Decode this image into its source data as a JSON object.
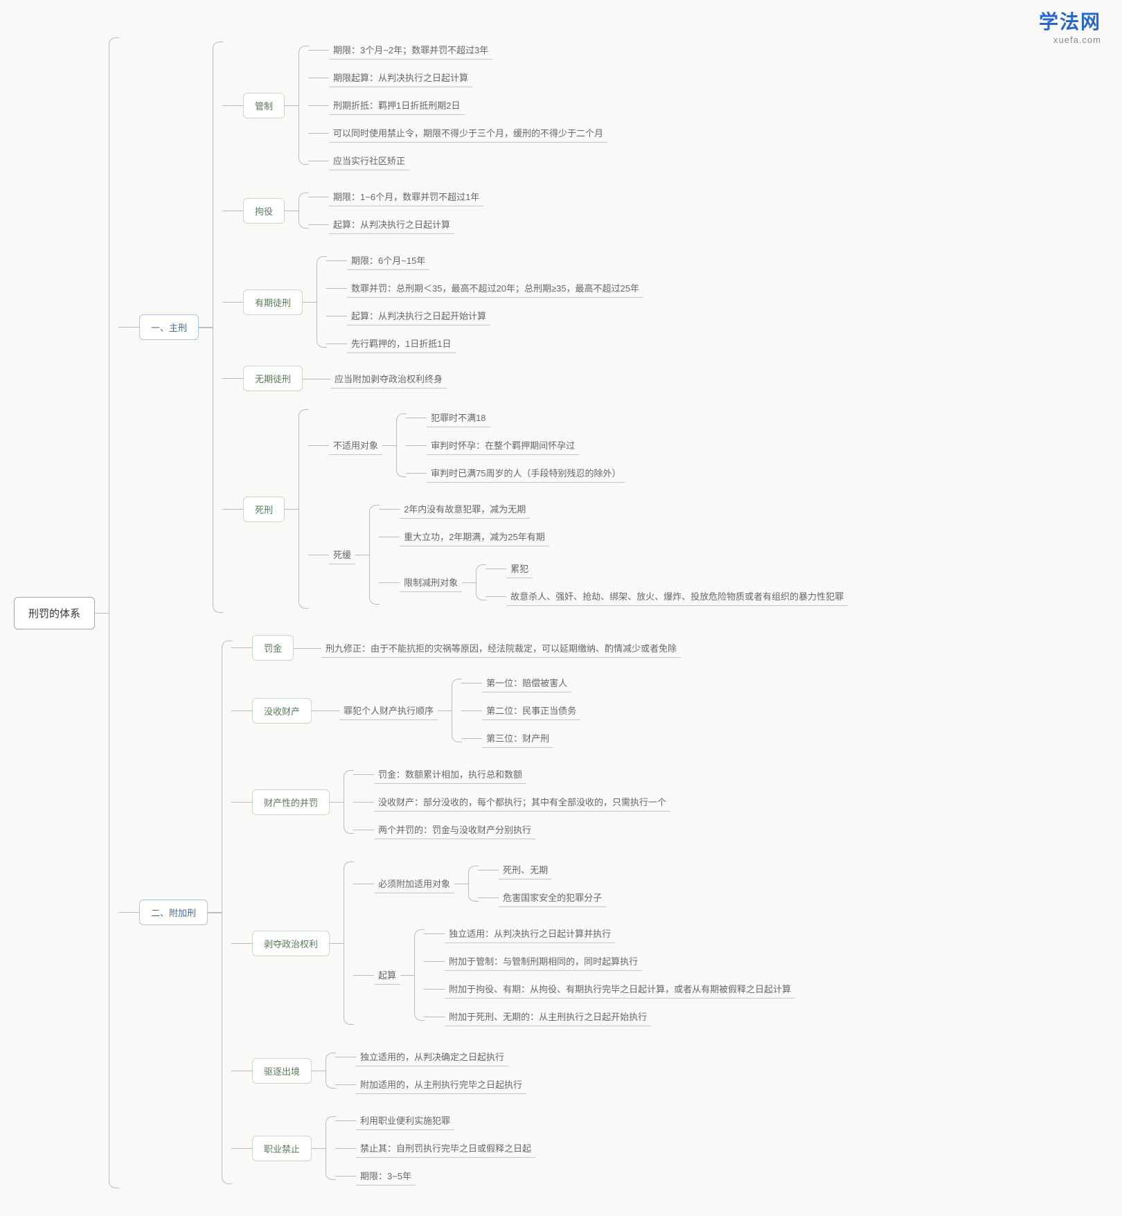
{
  "watermark": {
    "main": "学法网",
    "sub": "xuefa.com"
  },
  "root": "刑罚的体系",
  "b1": {
    "title": "一、主刑",
    "guanzhi": {
      "title": "管制",
      "items": [
        "期限：3个月~2年；数罪并罚不超过3年",
        "期限起算：从判决执行之日起计算",
        "刑期折抵：羁押1日折抵刑期2日",
        "可以同时使用禁止令，期限不得少于三个月，缓刑的不得少于二个月",
        "应当实行社区矫正"
      ]
    },
    "juyi": {
      "title": "拘役",
      "items": [
        "期限：1~6个月，数罪并罚不超过1年",
        "起算：从判决执行之日起计算"
      ]
    },
    "youqi": {
      "title": "有期徒刑",
      "items": [
        "期限：6个月~15年",
        "数罪并罚：总刑期＜35，最高不超过20年；总刑期≥35，最高不超过25年",
        "起算：从判决执行之日起开始计算",
        "先行羁押的，1日折抵1日"
      ]
    },
    "wuqi": {
      "title": "无期徒刑",
      "item": "应当附加剥夺政治权利终身"
    },
    "sixing": {
      "title": "死刑",
      "bushiyong": {
        "title": "不适用对象",
        "items": [
          "犯罪时不满18",
          "审判时怀孕：在整个羁押期间怀孕过",
          "审判时已满75周岁的人（手段特别残忍的除外）"
        ]
      },
      "sihuan": {
        "title": "死缓",
        "items": [
          "2年内没有故意犯罪，减为无期",
          "重大立功，2年期满，减为25年有期"
        ],
        "xianzhi": {
          "title": "限制减刑对象",
          "items": [
            "累犯",
            "故意杀人、强奸、抢劫、绑架、放火、爆炸、投放危险物质或者有组织的暴力性犯罪"
          ]
        }
      }
    }
  },
  "b2": {
    "title": "二、附加刑",
    "fajin": {
      "title": "罚金",
      "item": "刑九修正：由于不能抗拒的灾祸等原因，经法院裁定，可以延期缴纳、酌情减少或者免除"
    },
    "moshoucaichan": {
      "title": "没收财产",
      "sub": "罪犯个人财产执行顺序",
      "items": [
        "第一位：赔偿被害人",
        "第二位：民事正当债务",
        "第三位：财产刑"
      ]
    },
    "caichanxing": {
      "title": "财产性的并罚",
      "items": [
        "罚金：数额累计相加，执行总和数额",
        "没收财产：部分没收的，每个都执行；其中有全部没收的，只需执行一个",
        "两个并罚的：罚金与没收财产分别执行"
      ]
    },
    "boduo": {
      "title": "剥夺政治权利",
      "bixu": {
        "title": "必须附加适用对象",
        "items": [
          "死刑、无期",
          "危害国家安全的犯罪分子"
        ]
      },
      "qisuan": {
        "title": "起算",
        "items": [
          "独立适用：从判决执行之日起计算并执行",
          "附加于管制：与管制刑期相同的，同时起算执行",
          "附加于拘役、有期：从拘役、有期执行完毕之日起计算，或者从有期被假释之日起计算",
          "附加于死刑、无期的：从主刑执行之日起开始执行"
        ]
      }
    },
    "quzhu": {
      "title": "驱逐出境",
      "items": [
        "独立适用的，从判决确定之日起执行",
        "附加适用的，从主刑执行完毕之日起执行"
      ]
    },
    "zhiye": {
      "title": "职业禁止",
      "items": [
        "利用职业便利实施犯罪",
        "禁止其：自刑罚执行完毕之日或假释之日起",
        "期限：3~5年"
      ]
    }
  }
}
